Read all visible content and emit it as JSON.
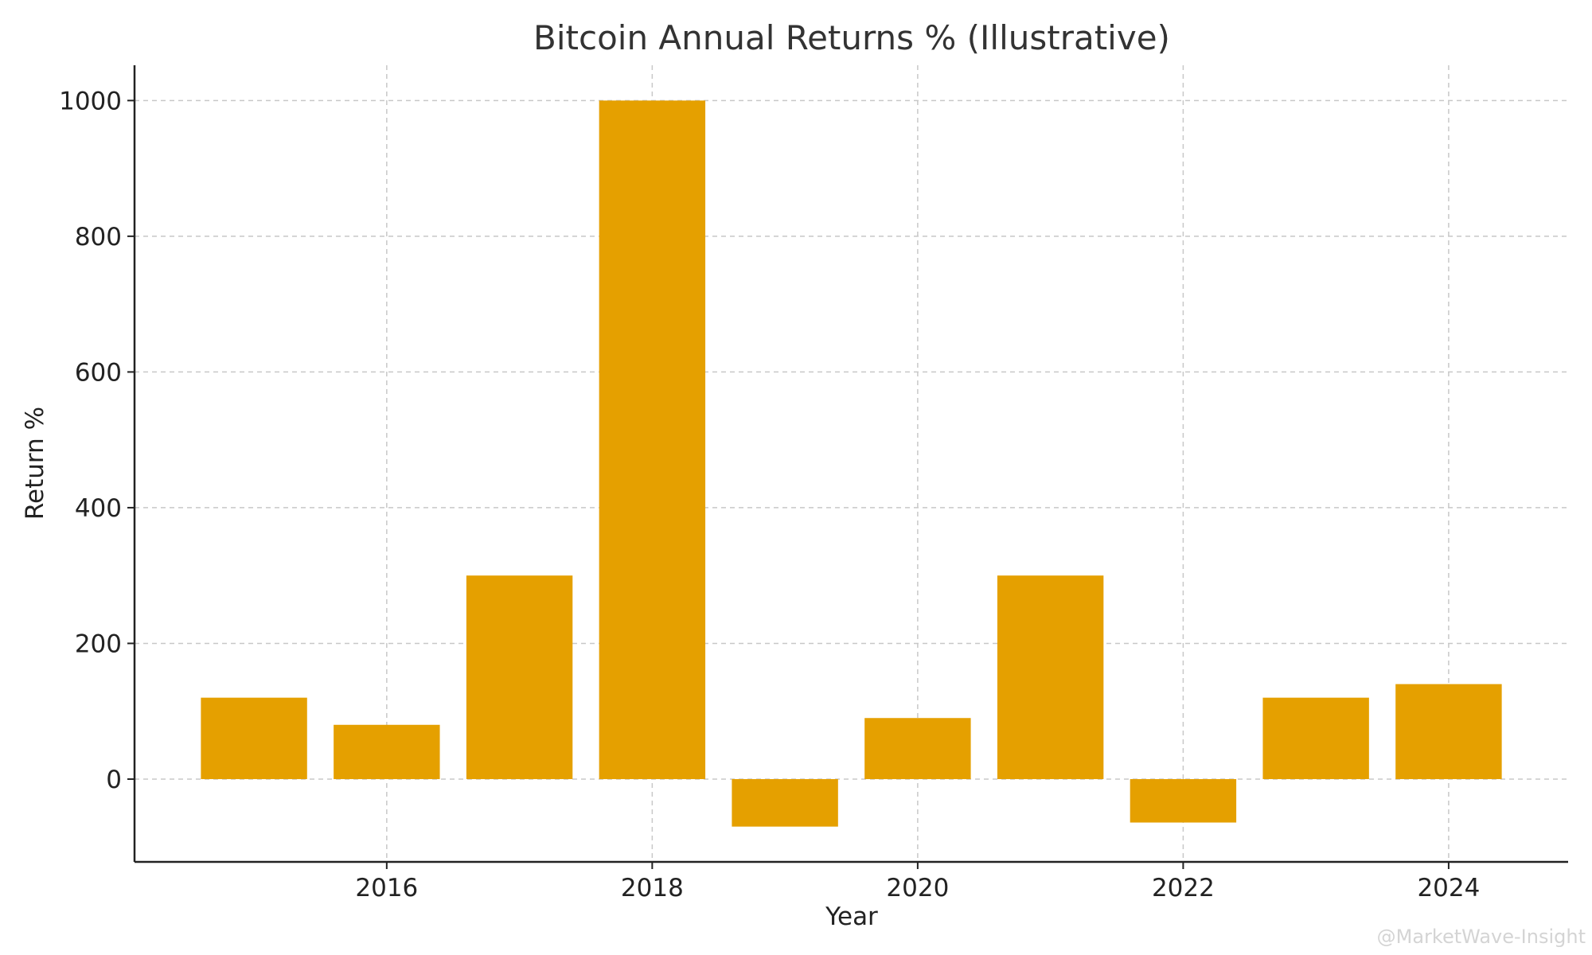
{
  "chart_data": {
    "type": "bar",
    "title": "Bitcoin Annual Returns % (Illustrative)",
    "xlabel": "Year",
    "ylabel": "Return %",
    "x": [
      2015,
      2016,
      2017,
      2018,
      2019,
      2020,
      2021,
      2022,
      2023,
      2024
    ],
    "values": [
      120,
      80,
      300,
      1000,
      -70,
      90,
      300,
      -64,
      120,
      140
    ],
    "xlim": [
      2014.1,
      2024.9
    ],
    "ylim": [
      -122,
      1052
    ],
    "xticks": [
      2016,
      2018,
      2020,
      2022,
      2024
    ],
    "yticks": [
      0,
      200,
      400,
      600,
      800,
      1000
    ],
    "bar_width_years": 0.8,
    "bar_color": "#E5A000",
    "grid": true,
    "legend": "none"
  },
  "watermark": {
    "text": "@MarketWave-Insight"
  }
}
